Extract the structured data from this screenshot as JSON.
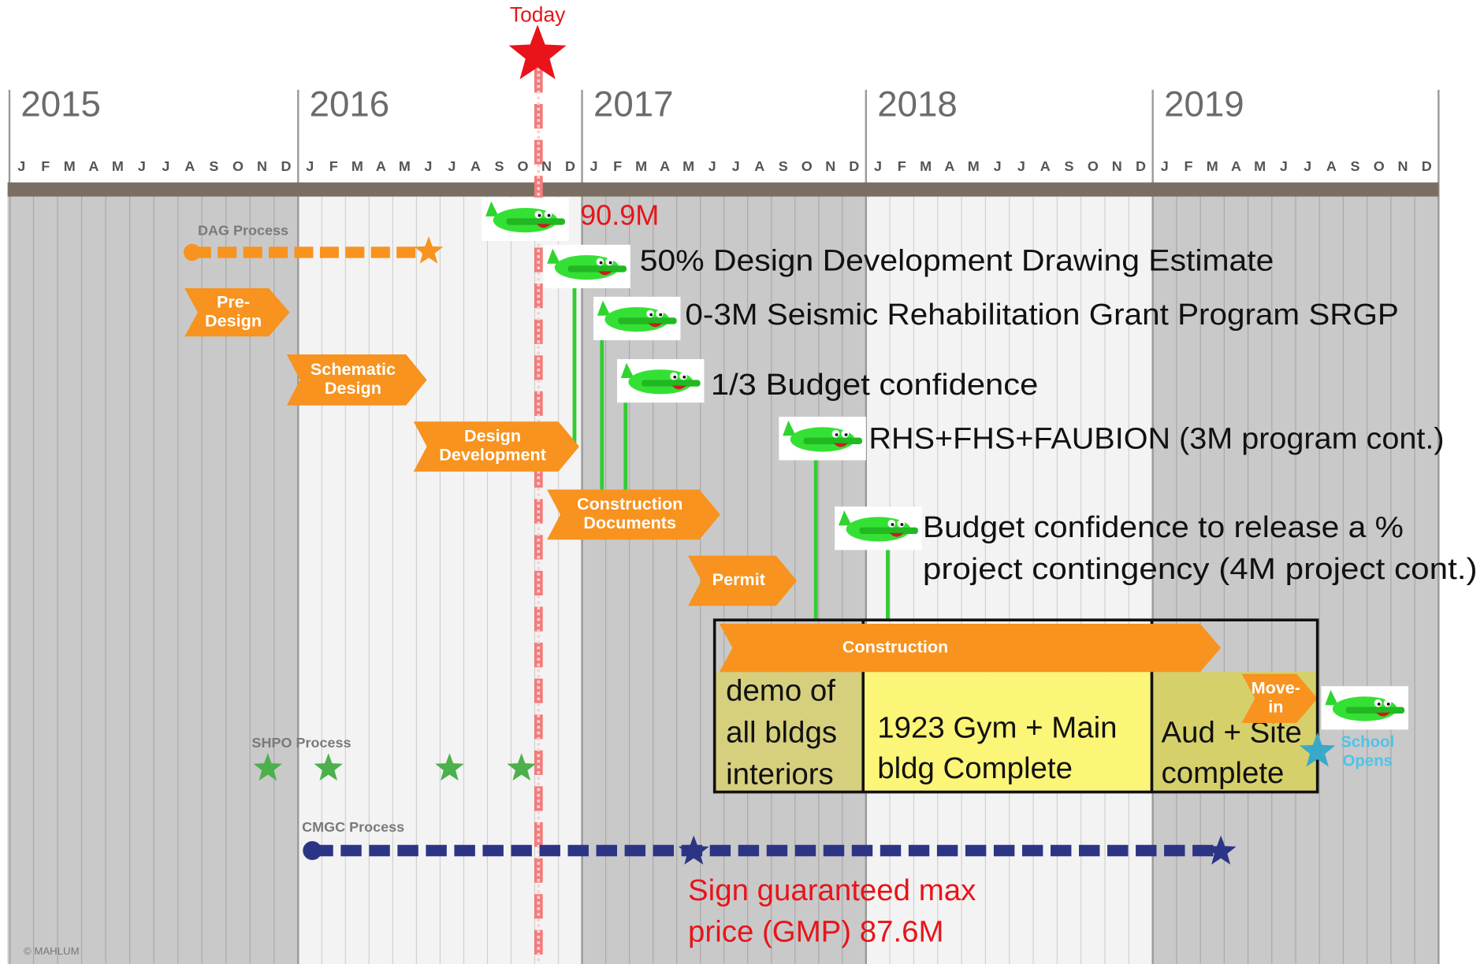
{
  "header": {
    "today": "Today",
    "years": [
      "2015",
      "2016",
      "2017",
      "2018",
      "2019"
    ],
    "months": [
      "J",
      "F",
      "M",
      "A",
      "M",
      "J",
      "J",
      "A",
      "S",
      "O",
      "N",
      "D"
    ]
  },
  "processes": {
    "dag": "DAG Process",
    "shpo": "SHPO Process",
    "cmgc": "CMGC Process"
  },
  "phases": [
    [
      "Pre-",
      "Design"
    ],
    [
      "Schematic",
      "Design"
    ],
    [
      "Design",
      "Development"
    ],
    [
      "Construction",
      "Documents"
    ],
    [
      "Permit"
    ],
    [
      "Construction"
    ],
    [
      "Move-",
      "in"
    ]
  ],
  "milestones": [
    [
      "90.9M"
    ],
    [
      "50% Design Development Drawing Estimate"
    ],
    [
      "0-3M Seismic Rehabilitation Grant Program SRGP"
    ],
    [
      "1/3 Budget confidence"
    ],
    [
      "RHS+FHS+FAUBION (3M program cont.)"
    ],
    [
      "Budget confidence to release a %",
      "project contingency (4M project cont.)"
    ]
  ],
  "construction_blocks": [
    [
      "demo of",
      "all bldgs",
      "interiors"
    ],
    [
      "1923 Gym + Main",
      "bldg Complete"
    ],
    [
      "Aud + Site",
      "complete"
    ]
  ],
  "school_opens": [
    "School",
    "Opens"
  ],
  "gmp": [
    "Sign guaranteed max",
    "price (GMP) 87.6M"
  ],
  "copyright": "© MAHLUM"
}
